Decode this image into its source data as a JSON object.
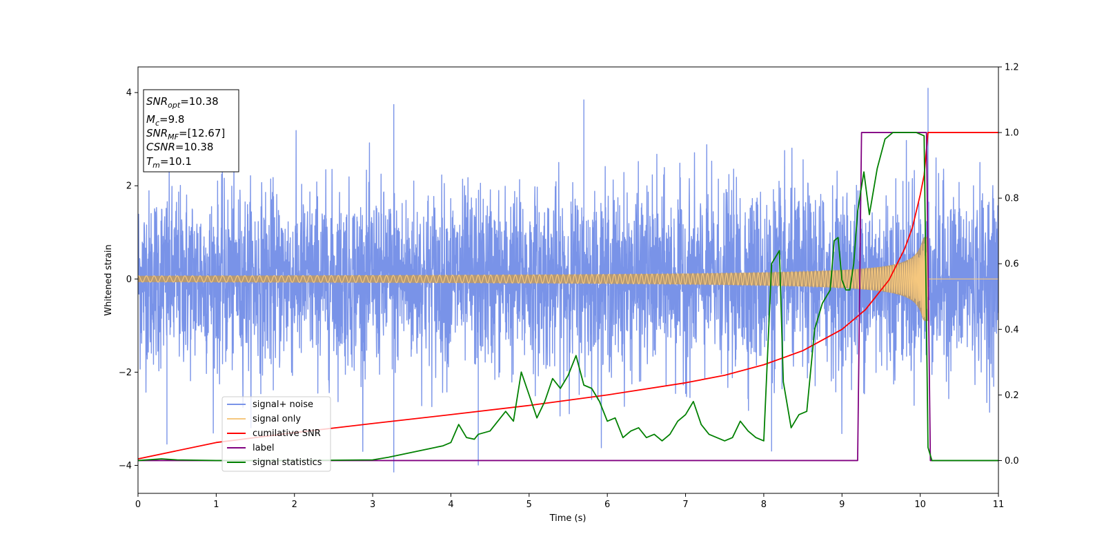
{
  "chart_data": {
    "type": "line",
    "xlabel": "Time (s)",
    "ylabel_left": "Whitened strain",
    "ylabel_right": "",
    "xlim": [
      0,
      11
    ],
    "ylim_left": [
      -4.6,
      4.55
    ],
    "ylim_right": [
      -0.1,
      1.2
    ],
    "x_ticks": [
      "0",
      "1",
      "2",
      "3",
      "4",
      "5",
      "6",
      "7",
      "8",
      "9",
      "10",
      "11"
    ],
    "y_ticks_left": [
      "-4",
      "-2",
      "0",
      "2",
      "4"
    ],
    "y_ticks_right": [
      "0.0",
      "0.2",
      "0.4",
      "0.6",
      "0.8",
      "1.0",
      "1.2"
    ],
    "grid": false,
    "legend_placement": "lower-left",
    "info_box": {
      "snr_opt": {
        "sym": "SNR",
        "sub": "opt",
        "val": "=10.38"
      },
      "mc": {
        "sym": "M",
        "sub": "c",
        "val": "=9.8"
      },
      "snr_mf": {
        "sym": "SNR",
        "sub": "MF",
        "val": "=[12.67]"
      },
      "csnr": {
        "sym": "CSNR",
        "sub": "",
        "val": "=10.38"
      },
      "tm": {
        "sym": "T",
        "sub": "m",
        "val": "=10.1"
      }
    },
    "series": [
      {
        "name": "signal+ noise",
        "axis": "left",
        "color": "#7993e8",
        "description_values": {
          "noise_envelope": [
            -2.6,
            2.6
          ],
          "extreme_peak": 4.1,
          "extreme_trough": -4.15
        }
      },
      {
        "name": "signal only",
        "axis": "left",
        "color": "#f5c77e",
        "chirp": {
          "t_end": 10.1,
          "peak_amplitude": 0.9,
          "base_amplitude": 0.03
        }
      },
      {
        "name": "cumilative SNR",
        "axis": "right",
        "color": "#ff0000",
        "x": [
          0,
          1,
          2,
          3,
          4,
          5,
          6,
          7,
          7.5,
          8,
          8.5,
          9,
          9.3,
          9.6,
          9.8,
          9.9,
          10,
          10.05,
          10.1,
          11
        ],
        "y": [
          0.005,
          0.055,
          0.085,
          0.113,
          0.14,
          0.168,
          0.2,
          0.237,
          0.26,
          0.292,
          0.335,
          0.4,
          0.46,
          0.55,
          0.645,
          0.71,
          0.81,
          0.87,
          1.0,
          1.0
        ]
      },
      {
        "name": "label",
        "axis": "right",
        "color": "#800080",
        "x": [
          0,
          9.2,
          9.25,
          10.08,
          10.13,
          11
        ],
        "y": [
          0,
          0,
          1,
          1,
          0,
          0
        ]
      },
      {
        "name": "signal statistics",
        "axis": "right",
        "color": "#008000",
        "x": [
          0,
          0.3,
          0.5,
          1,
          2,
          3,
          3.2,
          3.3,
          3.4,
          3.5,
          3.6,
          3.7,
          3.8,
          3.9,
          4.0,
          4.1,
          4.2,
          4.3,
          4.35,
          4.5,
          4.6,
          4.7,
          4.8,
          4.9,
          5.0,
          5.1,
          5.2,
          5.3,
          5.4,
          5.5,
          5.6,
          5.7,
          5.8,
          5.9,
          6.0,
          6.1,
          6.2,
          6.3,
          6.4,
          6.5,
          6.6,
          6.7,
          6.8,
          6.9,
          7.0,
          7.1,
          7.2,
          7.3,
          7.4,
          7.5,
          7.6,
          7.7,
          7.8,
          7.9,
          8.0,
          8.1,
          8.2,
          8.25,
          8.35,
          8.45,
          8.55,
          8.65,
          8.75,
          8.85,
          8.9,
          8.95,
          9.0,
          9.05,
          9.1,
          9.15,
          9.2,
          9.28,
          9.35,
          9.45,
          9.55,
          9.65,
          9.75,
          9.85,
          9.95,
          10.05,
          10.1,
          10.15,
          10.2,
          10.4,
          11
        ],
        "y": [
          0,
          0.005,
          0.002,
          0,
          0,
          0.002,
          0.01,
          0.015,
          0.02,
          0.025,
          0.03,
          0.035,
          0.04,
          0.045,
          0.055,
          0.11,
          0.07,
          0.065,
          0.08,
          0.09,
          0.12,
          0.15,
          0.12,
          0.27,
          0.2,
          0.13,
          0.18,
          0.25,
          0.22,
          0.26,
          0.32,
          0.23,
          0.22,
          0.18,
          0.12,
          0.13,
          0.07,
          0.09,
          0.1,
          0.07,
          0.08,
          0.06,
          0.08,
          0.12,
          0.14,
          0.18,
          0.11,
          0.08,
          0.07,
          0.06,
          0.07,
          0.12,
          0.09,
          0.07,
          0.06,
          0.6,
          0.64,
          0.24,
          0.1,
          0.14,
          0.15,
          0.4,
          0.48,
          0.52,
          0.67,
          0.68,
          0.55,
          0.52,
          0.52,
          0.6,
          0.76,
          0.88,
          0.75,
          0.89,
          0.98,
          1.0,
          1.0,
          1.0,
          1.0,
          0.99,
          0.04,
          0.0,
          0.0,
          0.0,
          0.0
        ]
      }
    ]
  }
}
